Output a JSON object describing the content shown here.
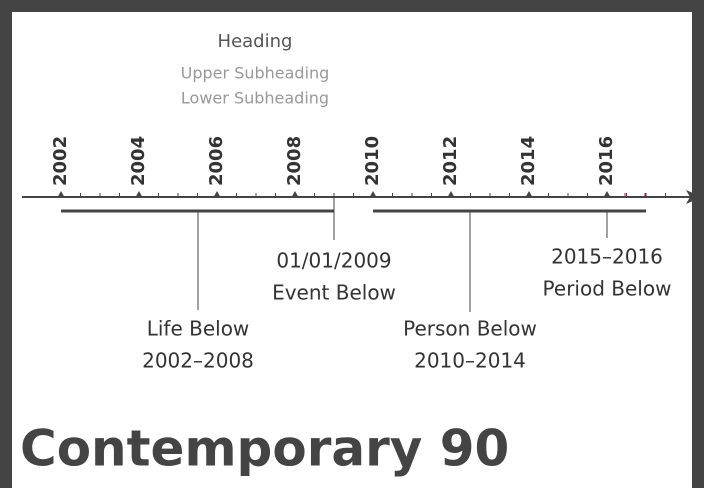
{
  "heading": "Heading",
  "subheadings": [
    "Upper Subheading",
    "Lower Subheading"
  ],
  "years": [
    "2002",
    "2004",
    "2006",
    "2008",
    "2010",
    "2012",
    "2014",
    "2016"
  ],
  "events": [
    {
      "lines": [
        "01/01/2009",
        "Event Below"
      ]
    },
    {
      "lines": [
        "2015–2016",
        "Period Below"
      ]
    },
    {
      "lines": [
        "Life Below",
        "2002–2008"
      ]
    },
    {
      "lines": [
        "Person Below",
        "2010–2014"
      ]
    }
  ],
  "title": "Contemporary 90"
}
